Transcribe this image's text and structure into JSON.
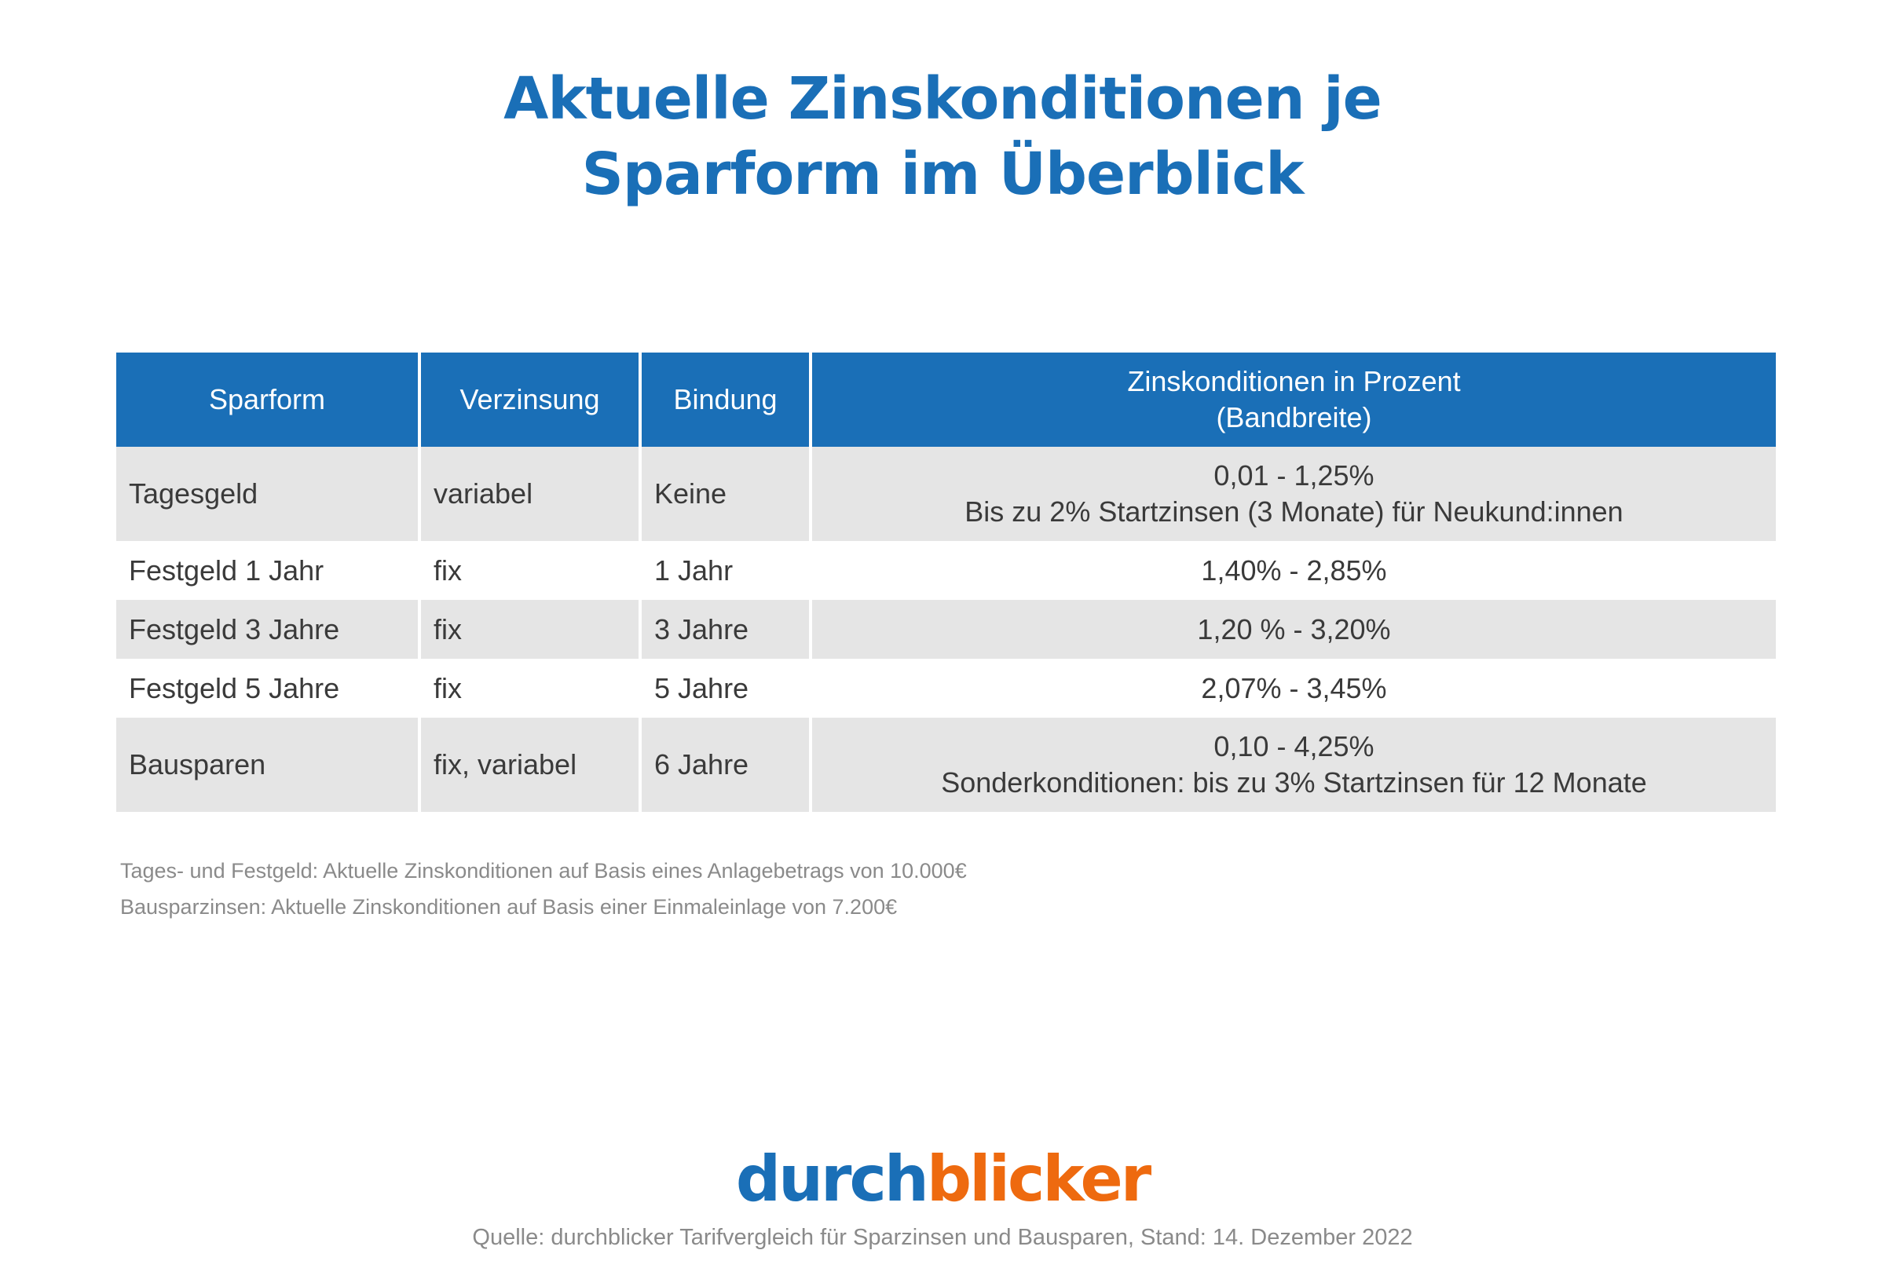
{
  "title": {
    "line1": "Aktuelle Zinskonditionen je",
    "line2": "Sparform im Überblick"
  },
  "table": {
    "headers": [
      "Sparform",
      "Verzinsung",
      "Bindung",
      "Zinskonditionen in Prozent",
      "(Bandbreite)"
    ],
    "rows": [
      {
        "sparform": "Tagesgeld",
        "verzinsung": "variabel",
        "bindung": "Keine",
        "zins": "0,01 - 1,25%",
        "zins_note": "Bis zu 2% Startzinsen (3 Monate) für Neukund:innen"
      },
      {
        "sparform": "Festgeld 1 Jahr",
        "verzinsung": "fix",
        "bindung": "1 Jahr",
        "zins": "1,40% - 2,85%"
      },
      {
        "sparform": "Festgeld 3 Jahre",
        "verzinsung": "fix",
        "bindung": "3 Jahre",
        "zins": "1,20 % - 3,20%"
      },
      {
        "sparform": "Festgeld 5 Jahre",
        "verzinsung": "fix",
        "bindung": "5 Jahre",
        "zins": "2,07% - 3,45%"
      },
      {
        "sparform": "Bausparen",
        "verzinsung": "fix, variabel",
        "bindung": "6 Jahre",
        "zins": "0,10 - 4,25%",
        "zins_note": "Sonderkonditionen: bis zu 3% Startzinsen für 12 Monate"
      }
    ]
  },
  "notes": [
    "Tages- und Festgeld: Aktuelle Zinskonditionen auf Basis eines Anlagebetrags von 10.000€",
    "Bausparzinsen: Aktuelle Zinskonditionen auf Basis einer Einmaleinlage von 7.200€"
  ],
  "logo": {
    "part1": "durch",
    "part2": "blicker",
    "color1": "#1a6fb7",
    "color2": "#ee6a0f"
  },
  "source": "Quelle: durchblicker Tarifvergleich für Sparzinsen und Bausparen, Stand: 14. Dezember 2022"
}
